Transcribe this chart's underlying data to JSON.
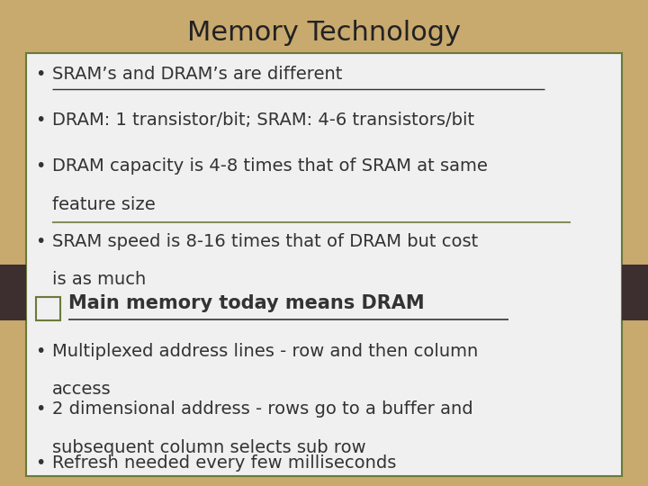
{
  "title": "Memory Technology",
  "title_fontsize": 22,
  "title_color": "#222222",
  "background_color": "#c8a96e",
  "box_color": "#f0f0f0",
  "box_border_color": "#6b7a3a",
  "dark_bar_color": "#3d2f2f",
  "bullet_color": "#333333",
  "bullet1": "SRAM’s and DRAM’s are different",
  "bullet2": "DRAM: 1 transistor/bit; SRAM: 4-6 transistors/bit",
  "bullet3a": "DRAM capacity is 4-8 times that of SRAM at same",
  "bullet3b": "feature size",
  "bullet4a": "SRAM speed is 8-16 times that of DRAM but cost",
  "bullet4b": "is as much",
  "highlight": "Main memory today means DRAM",
  "bullet5a": "Multiplexed address lines - row and then column",
  "bullet5b": "access",
  "bullet6a": "2 dimensional address - rows go to a buffer and",
  "bullet6b": "subsequent column selects sub row",
  "bullet7": "Refresh needed every few milliseconds",
  "text_fontsize": 14,
  "highlight_fontsize": 15
}
